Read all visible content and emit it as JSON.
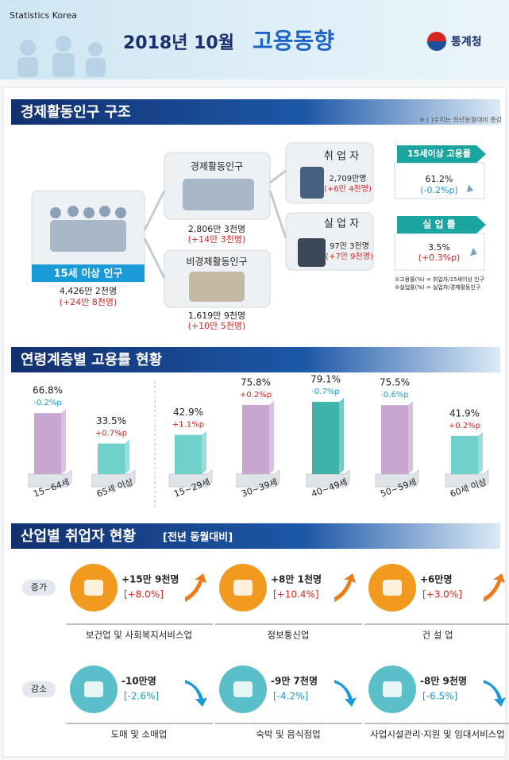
{
  "header": {
    "org": "Statistics Korea",
    "title_date": "2018년 10월",
    "title_main": "고용동향",
    "logo": "통계청"
  },
  "structure": {
    "heading": "경제활동인구 구조",
    "note": "※ ( )수치는 전년동월대비 증감",
    "population": {
      "label": "15세 이상 인구",
      "value": "4,426만 2천명",
      "change": "(+24만 8천명)"
    },
    "active": {
      "label": "경제활동인구",
      "value": "2,806만 3천명",
      "change": "(+14만 3천명)"
    },
    "inactive": {
      "label": "비경제활동인구",
      "value": "1,619만 9천명",
      "change": "(+10만 5천명)"
    },
    "employed": {
      "label": "취 업 자",
      "value": "2,709만명",
      "change": "(+6만 4천명)"
    },
    "unemployed": {
      "label": "실 업 자",
      "value": "97만 3천명",
      "change": "(+7만 9천명)"
    },
    "employment_rate": {
      "label": "15세이상 고용률",
      "value": "61.2%",
      "change": "(-0.2%p)"
    },
    "unemployment_rate": {
      "label": "실 업 률",
      "value": "3.5%",
      "change": "(+0.3%p)"
    },
    "notes": [
      "①고용률(%) = 취업자/15세이상 인구",
      "②실업률(%) = 실업자/경제활동인구"
    ]
  },
  "chart_data": {
    "type": "bar",
    "title": "연령계층별 고용률 현황",
    "categories": [
      "15~64세",
      "65세 이상",
      "15~29세",
      "30~39세",
      "40~49세",
      "50~59세",
      "60세 이상"
    ],
    "values": [
      66.8,
      33.5,
      42.9,
      75.8,
      79.1,
      75.5,
      41.9
    ],
    "value_labels": [
      "66.8%",
      "33.5%",
      "42.9%",
      "75.8%",
      "79.1%",
      "75.5%",
      "41.9%"
    ],
    "changes": [
      "-0.2%p",
      "+0.7%p",
      "+1.1%p",
      "+0.2%p",
      "-0.7%p",
      "-0.6%p",
      "+0.2%p"
    ],
    "colors": [
      "#c7a6cf",
      "#6fd0cc",
      "#6fd0cc",
      "#c7a6cf",
      "#3fb3aa",
      "#c7a6cf",
      "#6fd0cc"
    ]
  },
  "industry": {
    "heading": "산업별 취업자 현황",
    "subheading": "[전년 동월대비]",
    "increase": {
      "label": "증가",
      "items": [
        {
          "name": "보건업 및 사회복지서비스업",
          "change": "+15만 9천명",
          "rate": "[+8.0%]"
        },
        {
          "name": "정보통신업",
          "change": "+8만 1천명",
          "rate": "[+10.4%]"
        },
        {
          "name": "건 설 업",
          "change": "+6만명",
          "rate": "[+3.0%]"
        }
      ]
    },
    "decrease": {
      "label": "감소",
      "items": [
        {
          "name": "도매 및 소매업",
          "change": "-10만명",
          "rate": "[-2.6%]"
        },
        {
          "name": "숙박 및 음식점업",
          "change": "-9만 7천명",
          "rate": "[-4.2%]"
        },
        {
          "name": "사업시설관리·지원 및 임대서비스업",
          "change": "-8만 9천명",
          "rate": "[-6.5%]"
        }
      ]
    }
  }
}
